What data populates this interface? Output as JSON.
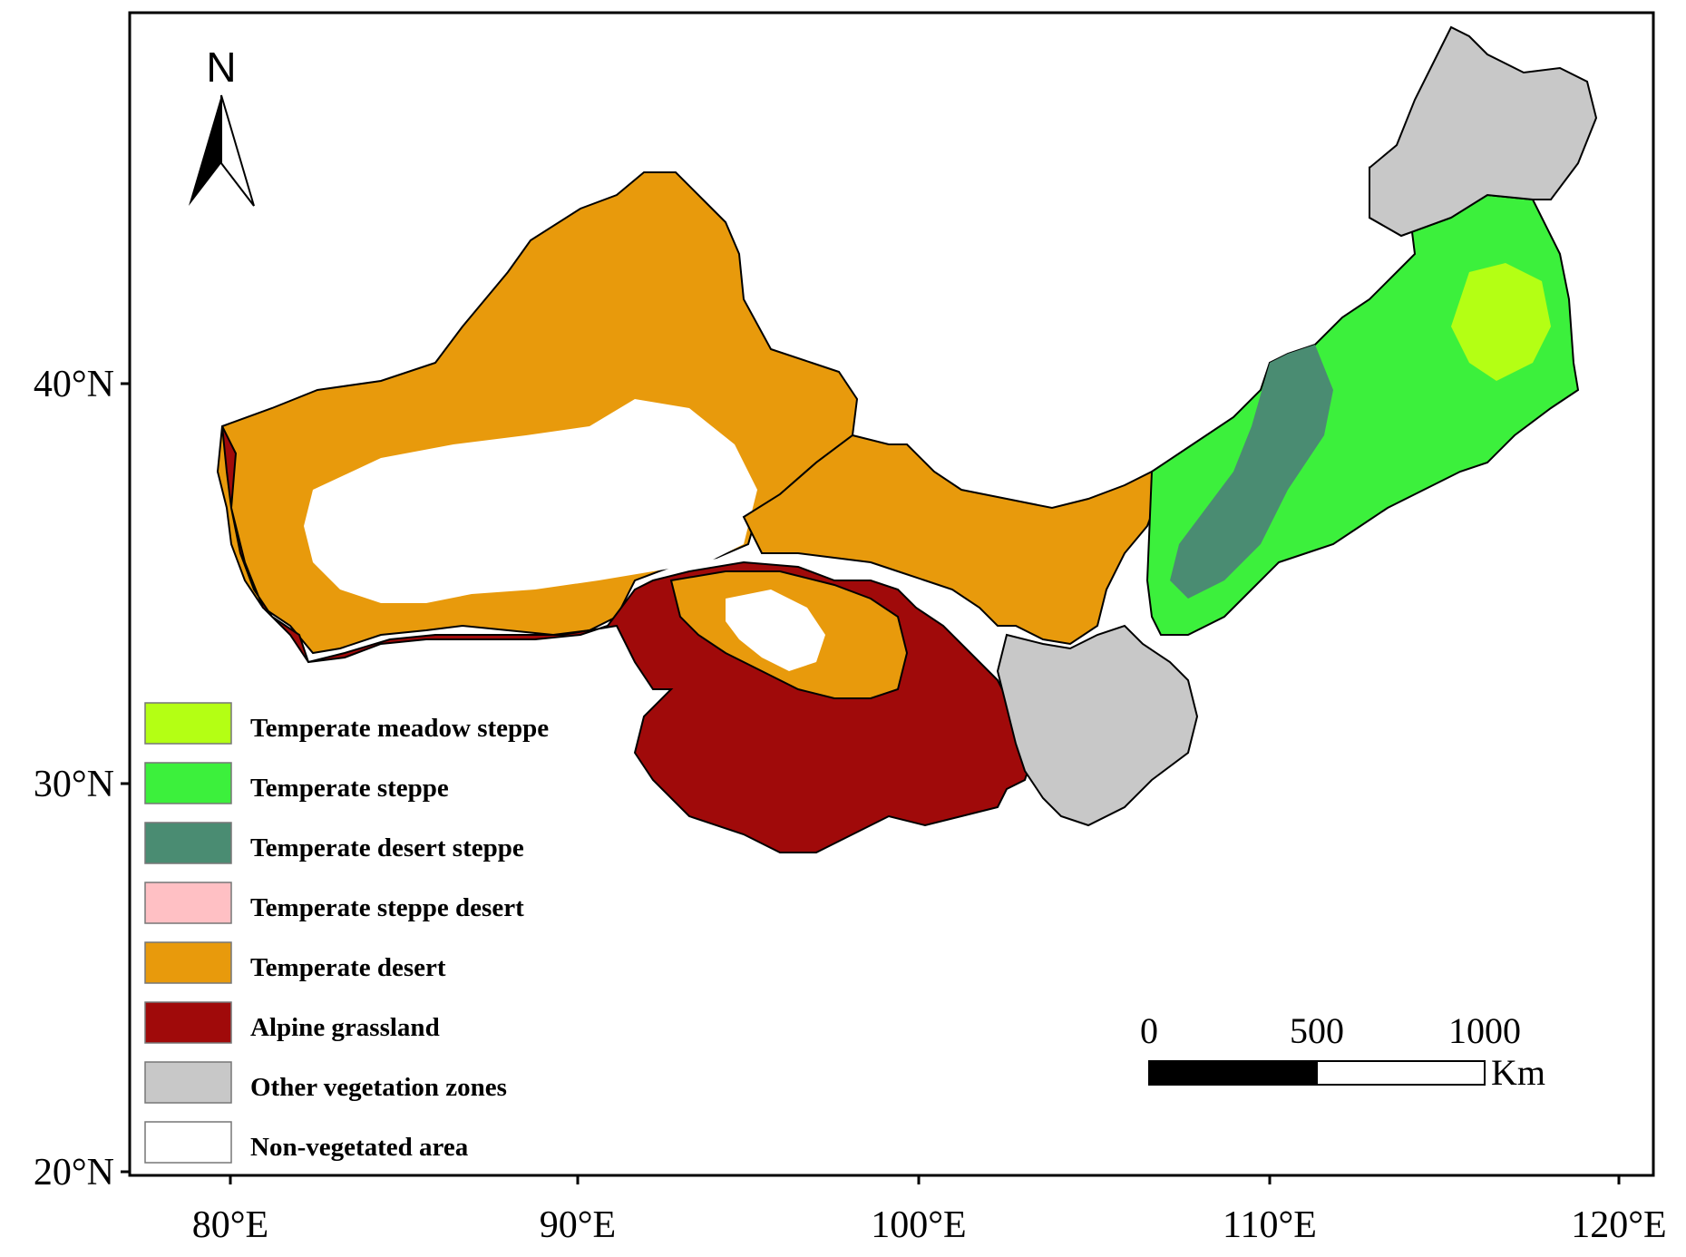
{
  "map": {
    "north_arrow_label": "N",
    "lat_ticks": [
      "40°N",
      "30°N",
      "20°N"
    ],
    "lon_ticks": [
      "80°E",
      "90°E",
      "100°E",
      "110°E",
      "120°E"
    ],
    "scale_bar": {
      "labels": [
        "0",
        "500",
        "1000"
      ],
      "unit": "Km"
    },
    "legend": [
      {
        "label": "Temperate meadow steppe",
        "color": "#b4ff14"
      },
      {
        "label": "Temperate steppe",
        "color": "#3cf03c"
      },
      {
        "label": "Temperate desert steppe",
        "color": "#4a8c72"
      },
      {
        "label": "Temperate steppe desert",
        "color": "#ffc0c4"
      },
      {
        "label": "Temperate desert",
        "color": "#e89a0c"
      },
      {
        "label": "Alpine grassland",
        "color": "#a00a0a"
      },
      {
        "label": "Other vegetation zones",
        "color": "#c8c8c8"
      },
      {
        "label": "Non-vegetated area",
        "color": "#ffffff"
      }
    ]
  }
}
